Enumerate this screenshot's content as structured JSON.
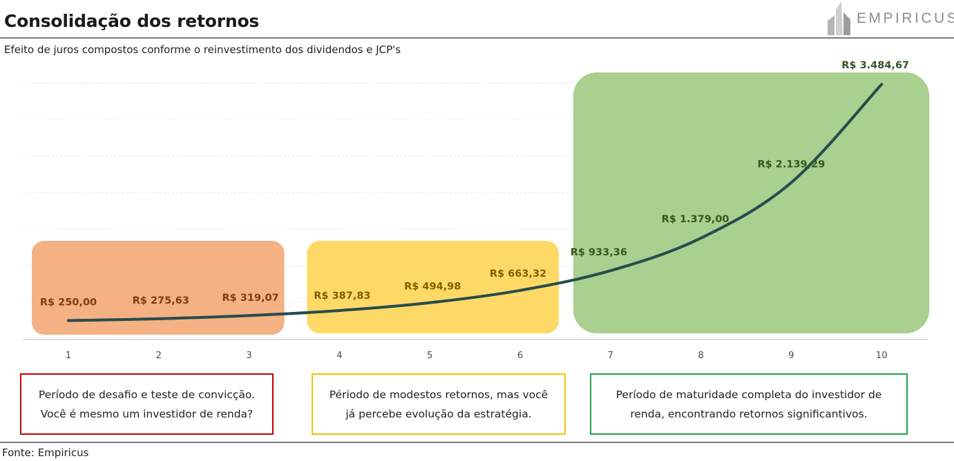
{
  "title": "Consolidação dos retornos",
  "subtitle": "Efeito de juros compostos conforme o reinvestimento dos dividendos e JCP's",
  "logo": {
    "text": "EMPIRICUS",
    "icon": "empiricus-building-icon"
  },
  "source": "Fonte: Empiricus",
  "colors": {
    "phase1": "#f4b183",
    "phase2": "#ffd966",
    "phase3": "#a9d08e",
    "line": "#2f5d3a",
    "line_dark": "#1f3864",
    "label1": "#843c0c",
    "label2": "#7f6000",
    "label3": "#375623",
    "note1_border": "#c00000",
    "note2_border": "#f2c200",
    "note3_border": "#1fa347"
  },
  "chart_data": {
    "type": "line",
    "title": "Consolidação dos retornos",
    "subtitle": "Efeito de juros compostos conforme o reinvestimento dos dividendos e JCP's",
    "xlabel": "",
    "ylabel": "",
    "x": [
      1,
      2,
      3,
      4,
      5,
      6,
      7,
      8,
      9,
      10
    ],
    "series": [
      {
        "values": [
          250.0,
          275.63,
          319.07,
          387.83,
          494.98,
          663.32,
          933.36,
          1379.0,
          2139.29,
          3484.67
        ],
        "labels": [
          "R$ 250,00",
          "R$ 275,63",
          "R$ 319,07",
          "R$ 387,83",
          "R$ 494,98",
          "R$ 663,32",
          "R$ 933,36",
          "R$ 1.379,00",
          "R$ 2.139,29",
          "R$ 3.484,67"
        ]
      }
    ],
    "ylim": [
      0,
      3600
    ],
    "grid": true,
    "legend": "none",
    "phases": [
      {
        "from": 1,
        "to": 3
      },
      {
        "from": 4,
        "to": 6
      },
      {
        "from": 7,
        "to": 10
      }
    ]
  },
  "notes": [
    {
      "line1": "Período de desafio e teste de convicção.",
      "line2": "Você é mesmo um investidor de renda?"
    },
    {
      "line1": "Périodo de modestos retornos, mas você",
      "line2": "já percebe evolução da estratégia."
    },
    {
      "line1": "Período de maturidade completa do investidor de",
      "line2": "renda, encontrando retornos significantivos."
    }
  ]
}
